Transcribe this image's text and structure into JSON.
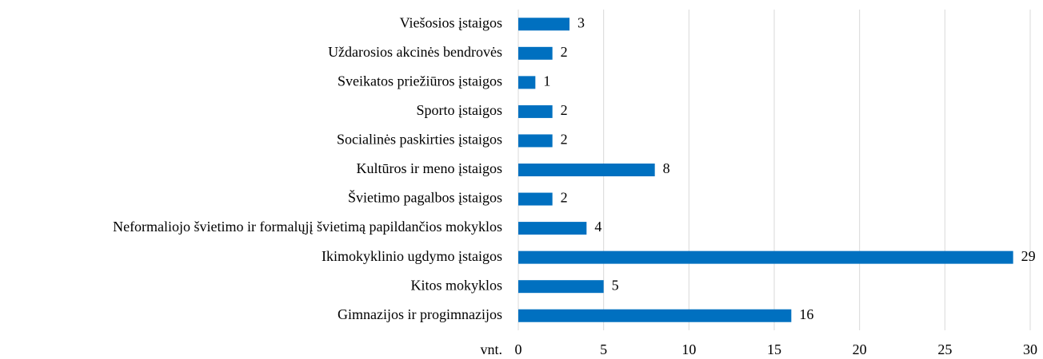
{
  "chart_data": {
    "type": "barh",
    "categories": [
      "Viešosios įstaigos",
      "Uždarosios akcinės bendrovės",
      "Sveikatos priežiūros įstaigos",
      "Sporto įstaigos",
      "Socialinės paskirties įstaigos",
      "Kultūros ir meno įstaigos",
      "Švietimo pagalbos įstaigos",
      "Neformaliojo švietimo ir formalųjį švietimą papildančios mokyklos",
      "Ikimokyklinio ugdymo įstaigos",
      "Kitos mokyklos",
      "Gimnazijos ir progimnazijos"
    ],
    "values": [
      3,
      2,
      1,
      2,
      2,
      8,
      2,
      4,
      29,
      5,
      16
    ],
    "color": "#0070c0",
    "x_axis_label": "vnt.",
    "xlim": [
      0,
      30
    ],
    "xticks": [
      0,
      5,
      10,
      15,
      20,
      25,
      30
    ],
    "grid": true
  }
}
